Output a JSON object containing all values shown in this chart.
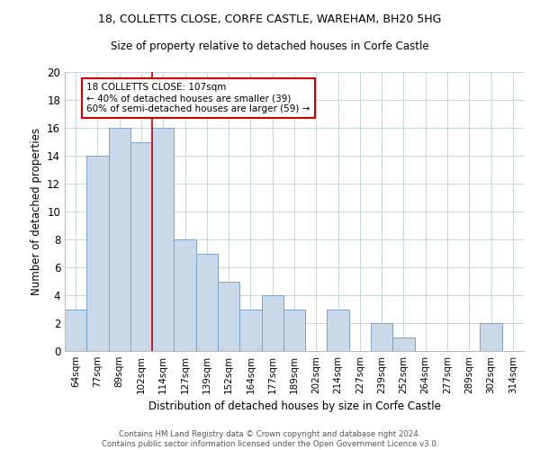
{
  "title_line1": "18, COLLETTS CLOSE, CORFE CASTLE, WAREHAM, BH20 5HG",
  "title_line2": "Size of property relative to detached houses in Corfe Castle",
  "xlabel": "Distribution of detached houses by size in Corfe Castle",
  "ylabel": "Number of detached properties",
  "categories": [
    "64sqm",
    "77sqm",
    "89sqm",
    "102sqm",
    "114sqm",
    "127sqm",
    "139sqm",
    "152sqm",
    "164sqm",
    "177sqm",
    "189sqm",
    "202sqm",
    "214sqm",
    "227sqm",
    "239sqm",
    "252sqm",
    "264sqm",
    "277sqm",
    "289sqm",
    "302sqm",
    "314sqm"
  ],
  "values": [
    3,
    14,
    16,
    15,
    16,
    8,
    7,
    5,
    3,
    4,
    3,
    0,
    3,
    0,
    2,
    1,
    0,
    0,
    0,
    2,
    0
  ],
  "bar_color": "#c9d9ea",
  "bar_edge_color": "#7ba3c8",
  "ref_line_x": 3.5,
  "ref_line_color": "#cc0000",
  "annotation_text": "18 COLLETTS CLOSE: 107sqm\n← 40% of detached houses are smaller (39)\n60% of semi-detached houses are larger (59) →",
  "annotation_box_color": "#ffffff",
  "annotation_box_edge_color": "#cc0000",
  "ylim": [
    0,
    20
  ],
  "yticks": [
    0,
    2,
    4,
    6,
    8,
    10,
    12,
    14,
    16,
    18,
    20
  ],
  "background_color": "#ffffff",
  "grid_color": "#c8d4e0",
  "footer_line1": "Contains HM Land Registry data © Crown copyright and database right 2024.",
  "footer_line2": "Contains public sector information licensed under the Open Government Licence v3.0."
}
